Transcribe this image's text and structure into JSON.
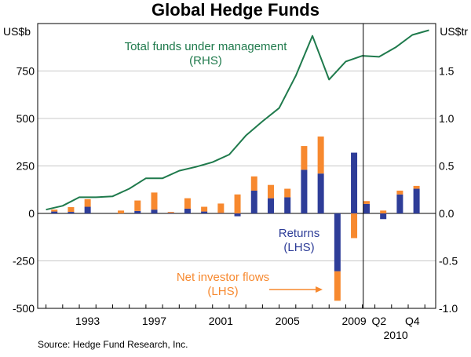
{
  "chart_data": {
    "type": "bar+line",
    "title": "Global Hedge Funds",
    "source": "Source: Hedge Fund Research, Inc.",
    "left_axis": {
      "unit": "US$b",
      "min": -500,
      "max": 1000,
      "ticks": [
        -500,
        -250,
        0,
        250,
        500,
        750
      ]
    },
    "right_axis": {
      "unit": "US$tr",
      "min": -1.0,
      "max": 2.0,
      "ticks": [
        -1.0,
        -0.5,
        0.0,
        0.5,
        1.0,
        1.5
      ]
    },
    "x_labels": [
      {
        "label": "1993",
        "year": 1993
      },
      {
        "label": "1997",
        "year": 1997
      },
      {
        "label": "2001",
        "year": 2001
      },
      {
        "label": "2005",
        "year": 2005
      },
      {
        "label": "2009",
        "year": 2009
      },
      {
        "label": "Q2",
        "year": 2010.5
      },
      {
        "label": "Q4",
        "year": 2012.5
      }
    ],
    "x_sublabel": "2010",
    "annual_years": [
      1991,
      1992,
      1993,
      1994,
      1995,
      1996,
      1997,
      1998,
      1999,
      2000,
      2001,
      2002,
      2003,
      2004,
      2005,
      2006,
      2007,
      2008,
      2009
    ],
    "quarter_positions": [
      2009.75,
      2010.75,
      2011.75,
      2012.75
    ],
    "series": [
      {
        "name": "Returns",
        "label_lines": [
          "Returns",
          "(LHS)"
        ],
        "color": "#2e3d98",
        "axis": "left",
        "annual": [
          10,
          8,
          35,
          0,
          0,
          13,
          20,
          3,
          25,
          10,
          2,
          -15,
          120,
          80,
          85,
          230,
          210,
          -305,
          320
        ],
        "quarterly": [
          50,
          -30,
          100,
          130
        ]
      },
      {
        "name": "Net investor flows",
        "label_lines": [
          "Net investor flows",
          "(LHS)"
        ],
        "color": "#f7892f",
        "axis": "left",
        "annual": [
          10,
          25,
          40,
          0,
          15,
          55,
          90,
          5,
          55,
          25,
          50,
          100,
          75,
          70,
          45,
          125,
          195,
          -155,
          -130
        ],
        "quarterly": [
          15,
          15,
          20,
          15
        ]
      },
      {
        "name": "Total funds under management",
        "label_lines": [
          "Total funds under management",
          "(RHS)"
        ],
        "color": "#1f7a4c",
        "axis": "right",
        "x": [
          1990.5,
          1991.5,
          1992.5,
          1993.5,
          1994.5,
          1995.5,
          1996.5,
          1997.5,
          1998.5,
          1999.5,
          2000.5,
          2001.5,
          2002.5,
          2003.5,
          2004.5,
          2005.5,
          2006.5,
          2007.5,
          2008.5,
          2009.5,
          2010.5,
          2011.5,
          2012.5,
          2013.5
        ],
        "values": [
          0.04,
          0.08,
          0.17,
          0.17,
          0.18,
          0.26,
          0.37,
          0.37,
          0.45,
          0.49,
          0.54,
          0.62,
          0.82,
          0.97,
          1.11,
          1.45,
          1.87,
          1.41,
          1.6,
          1.66,
          1.65,
          1.75,
          1.88,
          1.93
        ]
      }
    ]
  }
}
